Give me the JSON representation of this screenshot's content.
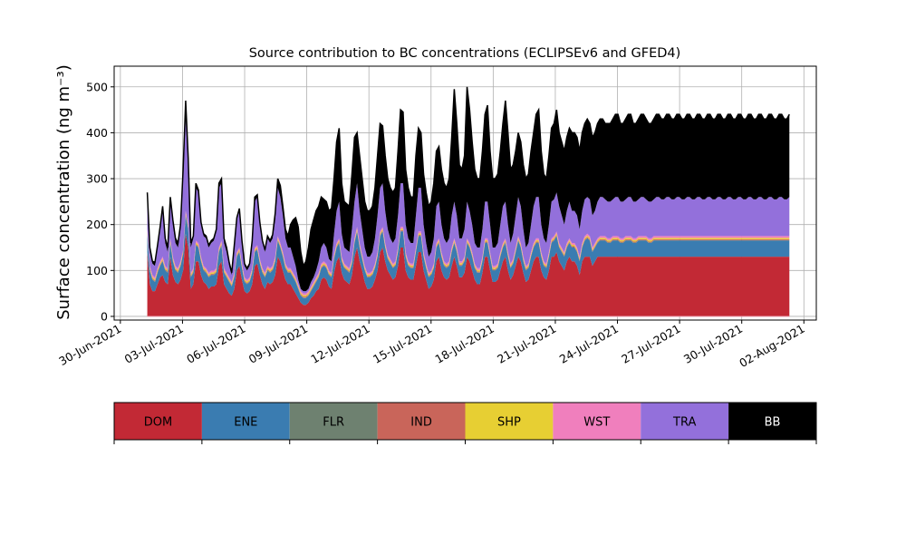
{
  "chart_data": {
    "type": "area",
    "title": "Source contribution to BC concentrations (ECLIPSEv6 and GFED4)",
    "xlabel": "",
    "ylabel": "Surface concentration (ng m⁻³)",
    "ylim": [
      -8,
      545
    ],
    "xlim_days": [
      -0.3,
      33.6
    ],
    "x_tick_labels": [
      "30-Jun-2021",
      "03-Jul-2021",
      "06-Jul-2021",
      "09-Jul-2021",
      "12-Jul-2021",
      "15-Jul-2021",
      "18-Jul-2021",
      "21-Jul-2021",
      "24-Jul-2021",
      "27-Jul-2021",
      "30-Jul-2021",
      "02-Aug-2021"
    ],
    "x_ticks_days": [
      0,
      3,
      6,
      9,
      12,
      15,
      18,
      21,
      24,
      27,
      30,
      33
    ],
    "y_ticks": [
      0,
      100,
      200,
      300,
      400,
      500
    ],
    "grid": true,
    "series_order": [
      "DOM",
      "ENE",
      "FLR",
      "IND",
      "SHP",
      "WST",
      "TRA",
      "BB"
    ],
    "colors": {
      "DOM": "#c22935",
      "ENE": "#3a7cb1",
      "FLR": "#6e8170",
      "IND": "#c9655a",
      "SHP": "#e7cf33",
      "WST": "#f07fbd",
      "TRA": "#9370db",
      "BB": "#000000"
    },
    "total_outline_color": "#000000",
    "time_step_hours": 3,
    "start_day": 1.3,
    "end_day": 32.3,
    "stacked_tops": {
      "DOM": [
        140,
        70,
        55,
        55,
        70,
        85,
        90,
        75,
        70,
        130,
        90,
        75,
        70,
        80,
        100,
        180,
        150,
        60,
        70,
        120,
        120,
        90,
        75,
        70,
        60,
        65,
        65,
        70,
        110,
        120,
        70,
        60,
        50,
        45,
        60,
        100,
        110,
        80,
        55,
        50,
        55,
        70,
        110,
        115,
        90,
        70,
        60,
        75,
        70,
        75,
        90,
        130,
        120,
        100,
        80,
        70,
        70,
        60,
        50,
        40,
        30,
        25,
        25,
        30,
        40,
        45,
        55,
        60,
        80,
        85,
        80,
        65,
        60,
        95,
        120,
        130,
        95,
        80,
        75,
        70,
        90,
        130,
        150,
        120,
        100,
        75,
        60,
        60,
        65,
        80,
        100,
        140,
        150,
        120,
        100,
        90,
        80,
        85,
        110,
        150,
        150,
        100,
        85,
        80,
        80,
        110,
        140,
        140,
        100,
        80,
        60,
        65,
        80,
        120,
        130,
        100,
        85,
        80,
        85,
        110,
        130,
        110,
        85,
        85,
        95,
        130,
        120,
        100,
        80,
        70,
        70,
        95,
        130,
        130,
        100,
        75,
        75,
        80,
        100,
        120,
        130,
        100,
        80,
        90,
        110,
        130,
        120,
        95,
        75,
        80,
        100,
        120,
        130,
        130,
        100,
        85,
        80,
        100,
        130,
        130,
        140,
        120,
        110,
        100,
        120,
        130,
        120,
        120,
        110,
        90,
        120,
        130,
        130,
        130,
        110,
        120,
        130,
        130,
        130,
        130,
        130,
        130,
        130,
        130,
        130,
        130,
        130,
        130,
        130,
        130,
        130,
        130,
        130,
        130,
        130,
        130,
        130,
        130,
        130,
        130,
        130,
        130,
        130,
        130,
        130,
        130,
        130,
        130,
        130,
        130,
        130,
        130,
        130,
        130,
        130,
        130,
        130,
        130,
        130,
        130,
        130,
        130,
        130,
        130,
        130,
        130,
        130,
        130,
        130,
        130,
        130,
        130,
        130,
        130,
        130,
        130,
        130,
        130,
        130,
        130,
        130,
        130,
        130,
        130,
        130,
        130,
        130,
        130,
        130,
        130,
        130,
        130
      ],
      "ENE": [
        180,
        100,
        80,
        75,
        95,
        110,
        120,
        100,
        95,
        160,
        120,
        100,
        95,
        110,
        135,
        220,
        190,
        85,
        95,
        155,
        150,
        120,
        100,
        95,
        85,
        90,
        90,
        95,
        140,
        155,
        95,
        85,
        75,
        65,
        85,
        130,
        140,
        105,
        75,
        70,
        75,
        95,
        140,
        145,
        115,
        95,
        85,
        100,
        95,
        100,
        120,
        165,
        150,
        130,
        105,
        95,
        95,
        85,
        75,
        60,
        45,
        40,
        40,
        45,
        55,
        65,
        75,
        85,
        105,
        110,
        105,
        90,
        85,
        125,
        150,
        160,
        120,
        105,
        100,
        95,
        115,
        160,
        185,
        150,
        125,
        100,
        85,
        85,
        90,
        105,
        130,
        175,
        185,
        150,
        125,
        115,
        105,
        110,
        140,
        185,
        185,
        130,
        110,
        105,
        105,
        140,
        175,
        175,
        130,
        105,
        85,
        90,
        105,
        150,
        160,
        130,
        110,
        105,
        110,
        140,
        160,
        140,
        110,
        110,
        120,
        160,
        150,
        130,
        105,
        95,
        95,
        120,
        160,
        160,
        130,
        100,
        100,
        105,
        130,
        150,
        160,
        130,
        105,
        115,
        140,
        165,
        150,
        120,
        100,
        105,
        130,
        150,
        160,
        160,
        130,
        110,
        105,
        130,
        160,
        165,
        175,
        150,
        140,
        130,
        150,
        160,
        150,
        150,
        140,
        120,
        150,
        165,
        170,
        165,
        140,
        150,
        160,
        165,
        165,
        165,
        160,
        160,
        165,
        165,
        165,
        160,
        160,
        165,
        165,
        165,
        160,
        160,
        165,
        165,
        165,
        165,
        160,
        160,
        165,
        165,
        165,
        165,
        165,
        165,
        165,
        165,
        165,
        165,
        165,
        165,
        165,
        165,
        165,
        165,
        165,
        165,
        165,
        165,
        165,
        165,
        165,
        165,
        165,
        165,
        165,
        165,
        165,
        165,
        165,
        165,
        165,
        165,
        165,
        165,
        165,
        165,
        165,
        165,
        165,
        165,
        165,
        165,
        165,
        165,
        165,
        165,
        165,
        165,
        165,
        165,
        165,
        165
      ],
      "TRA": [
        250,
        140,
        115,
        110,
        150,
        190,
        230,
        160,
        140,
        250,
        200,
        160,
        150,
        190,
        300,
        430,
        330,
        150,
        170,
        280,
        270,
        200,
        175,
        170,
        150,
        160,
        165,
        185,
        280,
        290,
        160,
        140,
        110,
        90,
        150,
        210,
        230,
        160,
        110,
        100,
        110,
        160,
        250,
        260,
        200,
        160,
        140,
        170,
        160,
        170,
        210,
        280,
        260,
        220,
        170,
        150,
        150,
        130,
        110,
        80,
        60,
        55,
        55,
        60,
        75,
        85,
        100,
        120,
        150,
        160,
        150,
        125,
        120,
        180,
        230,
        250,
        180,
        150,
        145,
        140,
        190,
        250,
        290,
        230,
        190,
        150,
        130,
        130,
        140,
        170,
        220,
        280,
        290,
        230,
        190,
        170,
        160,
        170,
        220,
        290,
        290,
        200,
        170,
        160,
        160,
        220,
        280,
        280,
        200,
        160,
        130,
        140,
        170,
        240,
        250,
        200,
        170,
        160,
        170,
        220,
        250,
        220,
        170,
        170,
        190,
        250,
        230,
        200,
        160,
        150,
        150,
        190,
        250,
        250,
        200,
        150,
        150,
        160,
        200,
        240,
        250,
        200,
        160,
        180,
        220,
        260,
        240,
        190,
        150,
        160,
        200,
        240,
        260,
        260,
        200,
        170,
        160,
        200,
        250,
        255,
        270,
        240,
        220,
        200,
        230,
        250,
        230,
        230,
        220,
        190,
        230,
        255,
        260,
        255,
        220,
        230,
        250,
        260,
        260,
        255,
        250,
        250,
        255,
        260,
        260,
        250,
        250,
        255,
        260,
        260,
        250,
        250,
        255,
        260,
        260,
        255,
        250,
        250,
        255,
        260,
        260,
        255,
        255,
        260,
        260,
        255,
        255,
        260,
        260,
        255,
        255,
        260,
        260,
        255,
        255,
        260,
        260,
        255,
        255,
        260,
        260,
        255,
        255,
        260,
        260,
        255,
        255,
        260,
        260,
        255,
        255,
        260,
        260,
        255,
        255,
        260,
        260,
        255,
        255,
        260,
        260,
        255,
        255,
        260,
        260,
        255,
        255,
        260,
        260,
        255,
        255,
        260
      ],
      "BB": [
        270,
        150,
        120,
        118,
        155,
        195,
        240,
        170,
        150,
        260,
        210,
        170,
        160,
        200,
        320,
        470,
        345,
        160,
        175,
        290,
        275,
        205,
        180,
        175,
        155,
        165,
        170,
        190,
        290,
        300,
        170,
        150,
        118,
        95,
        155,
        215,
        235,
        165,
        115,
        105,
        115,
        165,
        260,
        265,
        205,
        165,
        145,
        175,
        165,
        178,
        225,
        300,
        285,
        240,
        190,
        175,
        200,
        210,
        215,
        195,
        140,
        110,
        120,
        150,
        190,
        210,
        230,
        240,
        260,
        255,
        250,
        230,
        235,
        300,
        380,
        410,
        290,
        250,
        245,
        240,
        310,
        390,
        400,
        350,
        300,
        250,
        230,
        230,
        240,
        280,
        350,
        420,
        415,
        350,
        300,
        280,
        270,
        280,
        360,
        450,
        445,
        320,
        280,
        260,
        260,
        350,
        410,
        400,
        310,
        270,
        240,
        250,
        290,
        360,
        370,
        320,
        290,
        280,
        300,
        390,
        495,
        420,
        330,
        320,
        350,
        500,
        450,
        380,
        320,
        300,
        300,
        360,
        440,
        460,
        360,
        300,
        300,
        310,
        360,
        420,
        470,
        400,
        320,
        330,
        360,
        400,
        380,
        330,
        300,
        310,
        360,
        400,
        440,
        450,
        360,
        310,
        300,
        350,
        410,
        420,
        450,
        400,
        380,
        360,
        390,
        410,
        400,
        400,
        390,
        360,
        400,
        420,
        430,
        420,
        390,
        400,
        420,
        430,
        430,
        420,
        420,
        420,
        430,
        440,
        440,
        420,
        420,
        430,
        440,
        440,
        420,
        420,
        430,
        440,
        440,
        430,
        420,
        420,
        430,
        440,
        440,
        430,
        430,
        440,
        440,
        430,
        430,
        440,
        440,
        430,
        430,
        440,
        440,
        430,
        430,
        440,
        440,
        430,
        430,
        440,
        440,
        430,
        430,
        440,
        440,
        430,
        430,
        440,
        440,
        430,
        430,
        440,
        440,
        430,
        430,
        440,
        440,
        430,
        430,
        440,
        440,
        430,
        430,
        440,
        440,
        430,
        430,
        440,
        440,
        430,
        430,
        440
      ]
    }
  },
  "legend": {
    "items": [
      {
        "label": "DOM",
        "color": "#c22935",
        "text_color": "#000000"
      },
      {
        "label": "ENE",
        "color": "#3a7cb1",
        "text_color": "#000000"
      },
      {
        "label": "FLR",
        "color": "#6e8170",
        "text_color": "#000000"
      },
      {
        "label": "IND",
        "color": "#c9655a",
        "text_color": "#000000"
      },
      {
        "label": "SHP",
        "color": "#e7cf33",
        "text_color": "#000000"
      },
      {
        "label": "WST",
        "color": "#f07fbd",
        "text_color": "#000000"
      },
      {
        "label": "TRA",
        "color": "#9370db",
        "text_color": "#000000"
      },
      {
        "label": "BB",
        "color": "#000000",
        "text_color": "#ffffff"
      }
    ]
  }
}
